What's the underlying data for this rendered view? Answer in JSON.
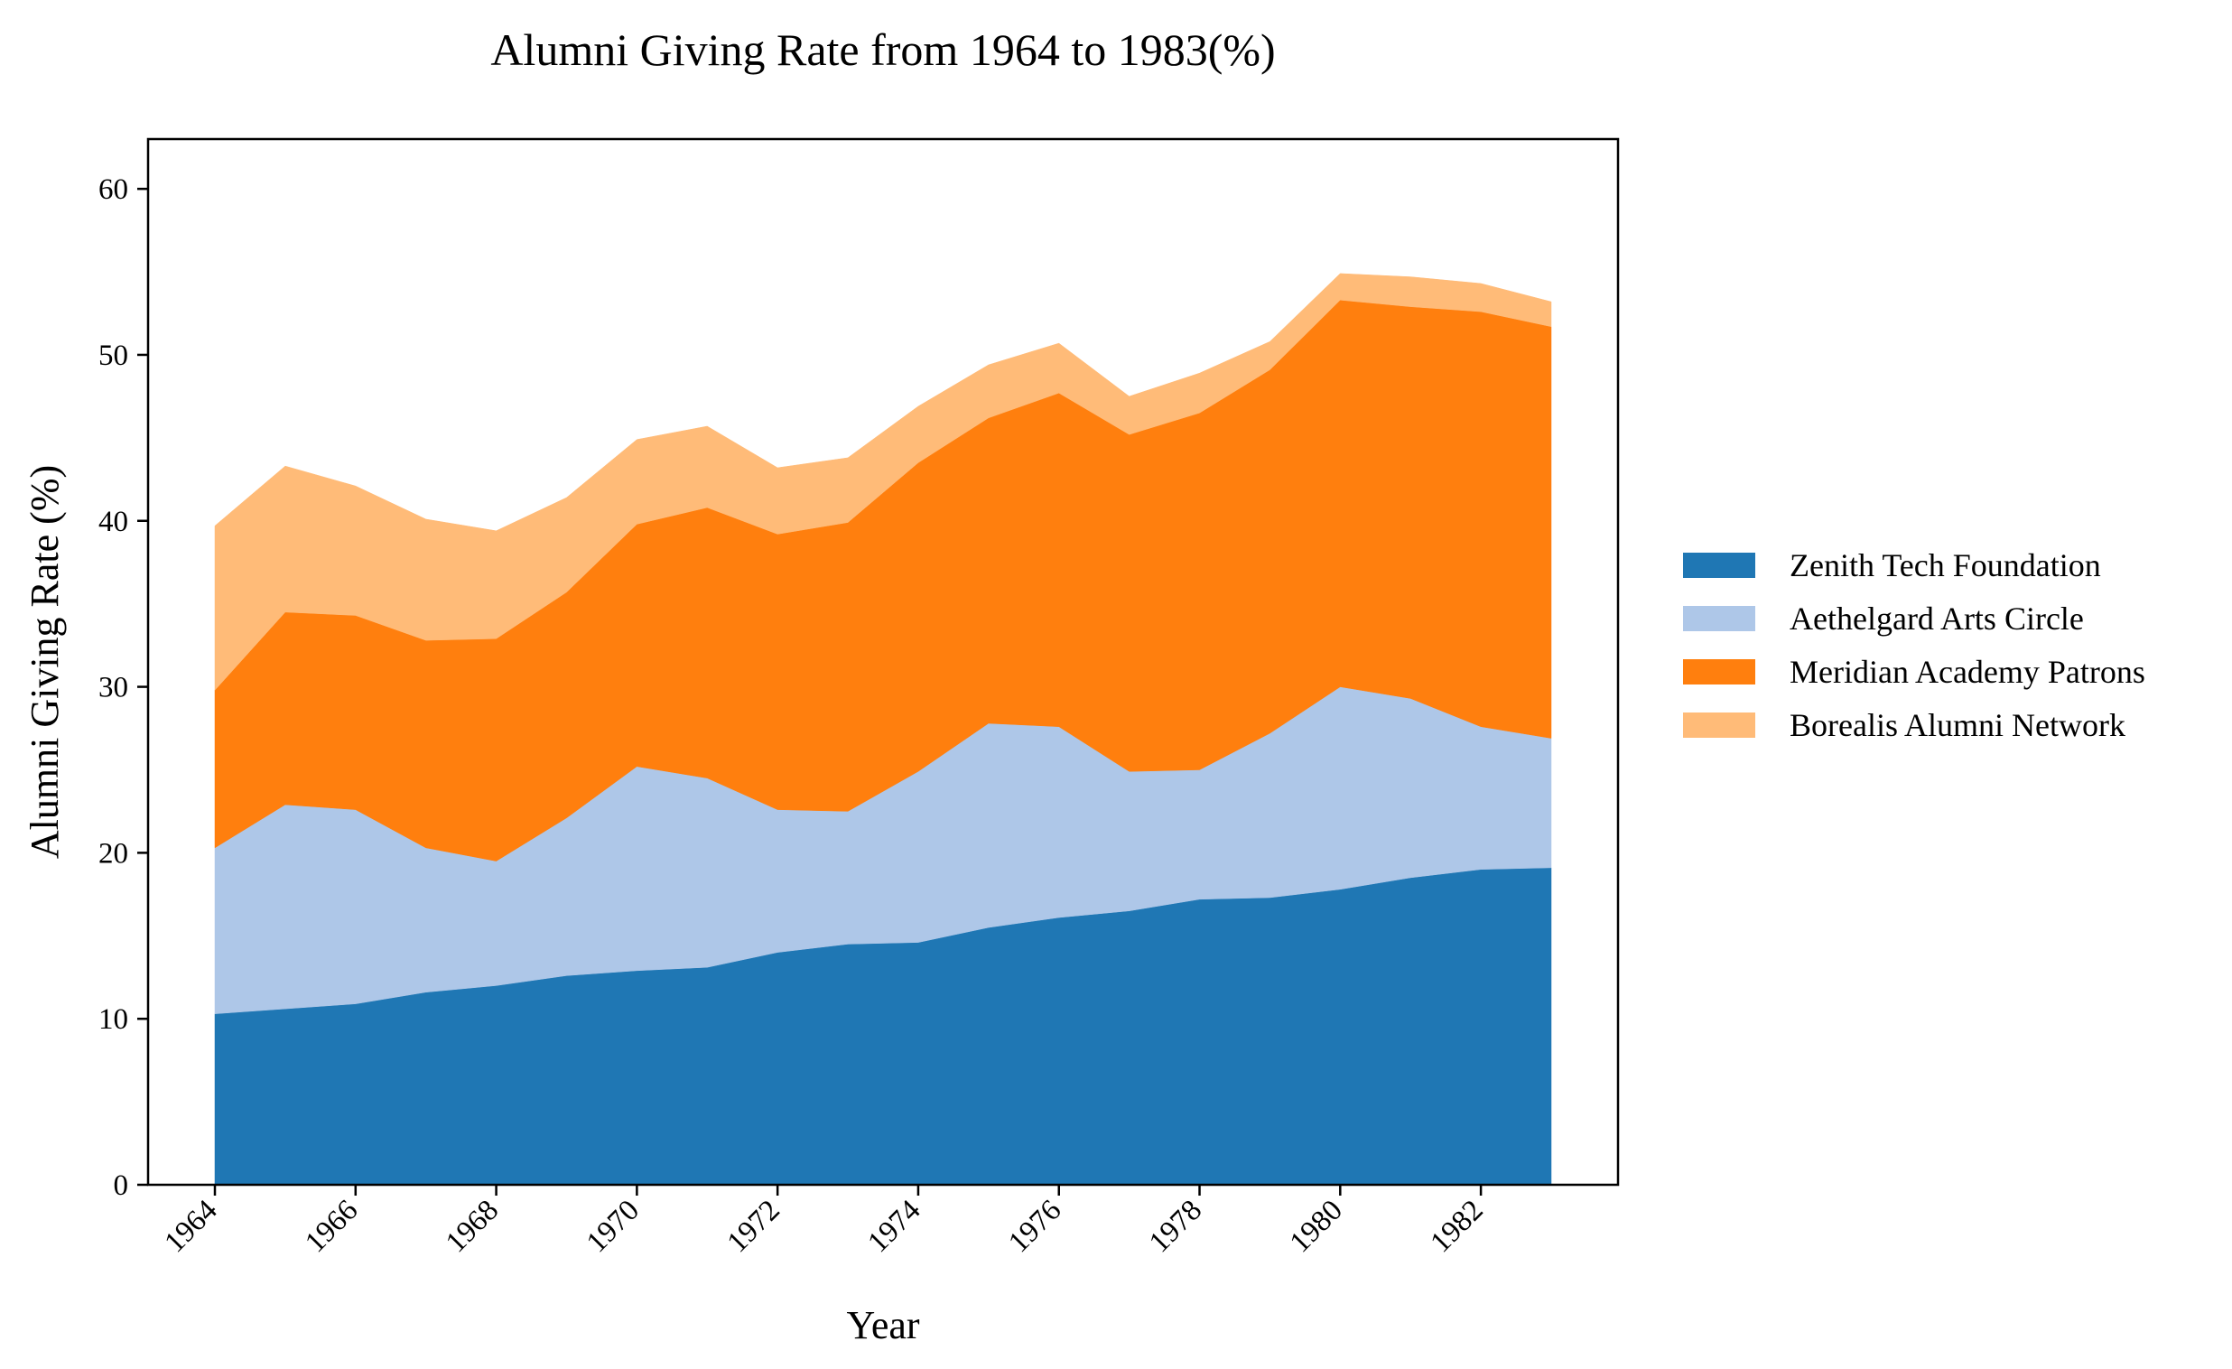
{
  "chart_data": {
    "type": "area",
    "stacked": true,
    "title": "Alumni Giving Rate from 1964 to 1983(%)",
    "xlabel": "Year",
    "ylabel": "Alumni Giving Rate (%)",
    "x": [
      1964,
      1965,
      1966,
      1967,
      1968,
      1969,
      1970,
      1971,
      1972,
      1973,
      1974,
      1975,
      1976,
      1977,
      1978,
      1979,
      1980,
      1981,
      1982,
      1983
    ],
    "xticks": [
      "1964",
      "1966",
      "1968",
      "1970",
      "1972",
      "1974",
      "1976",
      "1978",
      "1980",
      "1982"
    ],
    "xlim": [
      1963.05,
      1983.95
    ],
    "ylim": [
      0,
      63
    ],
    "yticks": [
      "0",
      "10",
      "20",
      "30",
      "40",
      "50",
      "60"
    ],
    "grid": false,
    "legend_position": "right",
    "series": [
      {
        "name": "Zenith Tech Foundation",
        "color": "#1f77b4",
        "values": [
          10.3,
          10.6,
          10.9,
          11.6,
          12.0,
          12.6,
          12.9,
          13.1,
          14.0,
          14.5,
          14.6,
          15.5,
          16.1,
          16.5,
          17.2,
          17.3,
          17.8,
          18.5,
          19.0,
          19.1
        ]
      },
      {
        "name": "Aethelgard Arts Circle",
        "color": "#aec7e8",
        "values": [
          10.0,
          12.3,
          11.7,
          8.7,
          7.5,
          9.5,
          12.3,
          11.4,
          8.6,
          8.0,
          10.3,
          12.3,
          11.5,
          8.4,
          7.8,
          9.9,
          12.2,
          10.8,
          8.6,
          7.8
        ]
      },
      {
        "name": "Meridian Academy Patrons",
        "color": "#ff7f0e",
        "values": [
          9.5,
          11.6,
          11.7,
          12.5,
          13.4,
          13.6,
          14.6,
          16.3,
          16.6,
          17.4,
          18.6,
          18.4,
          20.1,
          20.3,
          21.5,
          21.9,
          23.3,
          23.6,
          25.0,
          24.8
        ]
      },
      {
        "name": "Borealis Alumni Network",
        "color": "#ffbb78",
        "values": [
          9.9,
          8.8,
          7.8,
          7.3,
          6.5,
          5.7,
          5.1,
          4.9,
          4.0,
          3.9,
          3.4,
          3.2,
          3.0,
          2.3,
          2.4,
          1.7,
          1.6,
          1.8,
          1.7,
          1.5
        ]
      }
    ]
  }
}
